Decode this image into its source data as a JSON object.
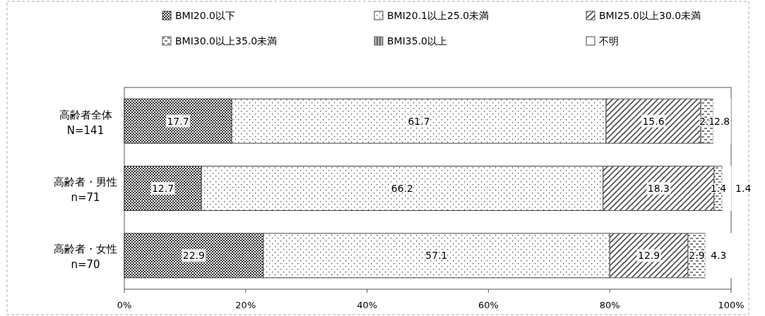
{
  "chart_data": {
    "type": "bar",
    "orientation": "horizontal",
    "stacked": true,
    "categories": [
      "高齢者全体\nN=141",
      "高齢者・男性\nn=71",
      "高齢者・女性\nn=70"
    ],
    "series": [
      {
        "name": "BMI20.0以下",
        "color": "#333333",
        "values": [
          17.7,
          12.7,
          22.9
        ]
      },
      {
        "name": "BMI20.1以上25.0未満",
        "color": "#404040",
        "values": [
          61.7,
          66.2,
          57.1
        ]
      },
      {
        "name": "BMI25.0以上30.0未満",
        "color": "#4d4d4d",
        "values": [
          15.6,
          18.3,
          12.9
        ]
      },
      {
        "name": "BMI30.0以上35.0未満",
        "color": "#595959",
        "values": [
          2.1,
          1.4,
          2.9
        ]
      },
      {
        "name": "BMI35.0以上",
        "color": "#666666",
        "values": [
          0,
          0,
          0
        ],
        "value_labels": [
          null,
          null,
          null
        ]
      },
      {
        "name": "不明",
        "color": "#ffffff",
        "values": [
          2.8,
          1.4,
          4.3
        ]
      }
    ],
    "data_labels": true,
    "xlim": [
      0,
      100
    ],
    "xticks": [
      {
        "value": 0,
        "label": "0%"
      },
      {
        "value": 20,
        "label": "20%"
      },
      {
        "value": 40,
        "label": "40%"
      },
      {
        "value": 60,
        "label": "60%"
      },
      {
        "value": 80,
        "label": "80%"
      },
      {
        "value": 100,
        "label": "100%"
      }
    ],
    "grid": false,
    "legend": "top"
  }
}
